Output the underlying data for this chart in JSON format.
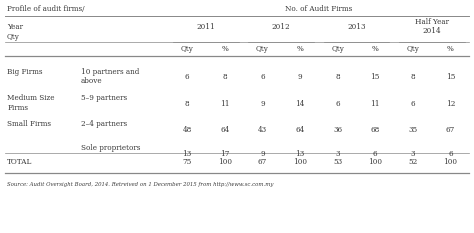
{
  "title_left": "Profile of audit firms/",
  "title_right": "No. of Audit Firms",
  "header_years": [
    "2011",
    "2012",
    "2013",
    "Half Year\n2014"
  ],
  "col_headers": [
    "Qty",
    "%",
    "Qty",
    "%",
    "Qty",
    "%",
    "Qty",
    "%"
  ],
  "big_data": [
    "6",
    "8",
    "6",
    "9",
    "8",
    "15",
    "8",
    "15"
  ],
  "med_data": [
    "8",
    "11",
    "9",
    "14",
    "6",
    "11",
    "6",
    "12"
  ],
  "small1_data": [
    "48",
    "64",
    "43",
    "64",
    "36",
    "68",
    "35",
    "67"
  ],
  "small2_data": [
    "13",
    "17",
    "9",
    "13",
    "3",
    "6",
    "3",
    "6"
  ],
  "total_data": [
    "75",
    "100",
    "67",
    "100",
    "53",
    "100",
    "52",
    "100"
  ],
  "source_text": "Source: Audit Oversight Board, 2014. Retreived on 1 December 2015 from http://www.sc.com.my",
  "bg_color": "#ffffff",
  "text_color": "#3a3a3a",
  "line_color": "#888888"
}
